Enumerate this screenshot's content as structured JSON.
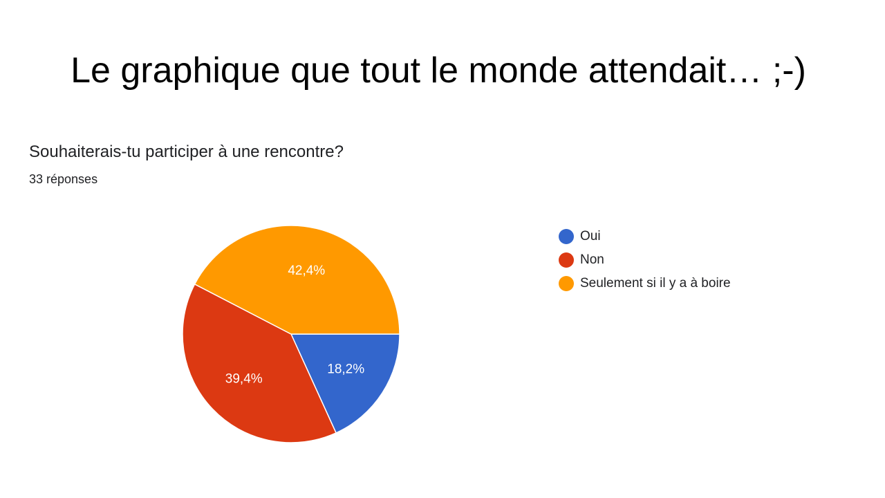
{
  "slide": {
    "title": "Le graphique que tout le monde attendait… ;-)"
  },
  "question": {
    "text": "Souhaiterais-tu participer à une rencontre?",
    "responses": "33 réponses"
  },
  "chart_data": {
    "type": "pie",
    "categories": [
      "Oui",
      "Non",
      "Seulement si il y a à boire"
    ],
    "values": [
      18.2,
      39.4,
      42.4
    ],
    "labels": [
      "18,2%",
      "39,4%",
      "42,4%"
    ],
    "colors": [
      "#3366cc",
      "#dc3912",
      "#ff9900"
    ],
    "legend_position": "right"
  }
}
